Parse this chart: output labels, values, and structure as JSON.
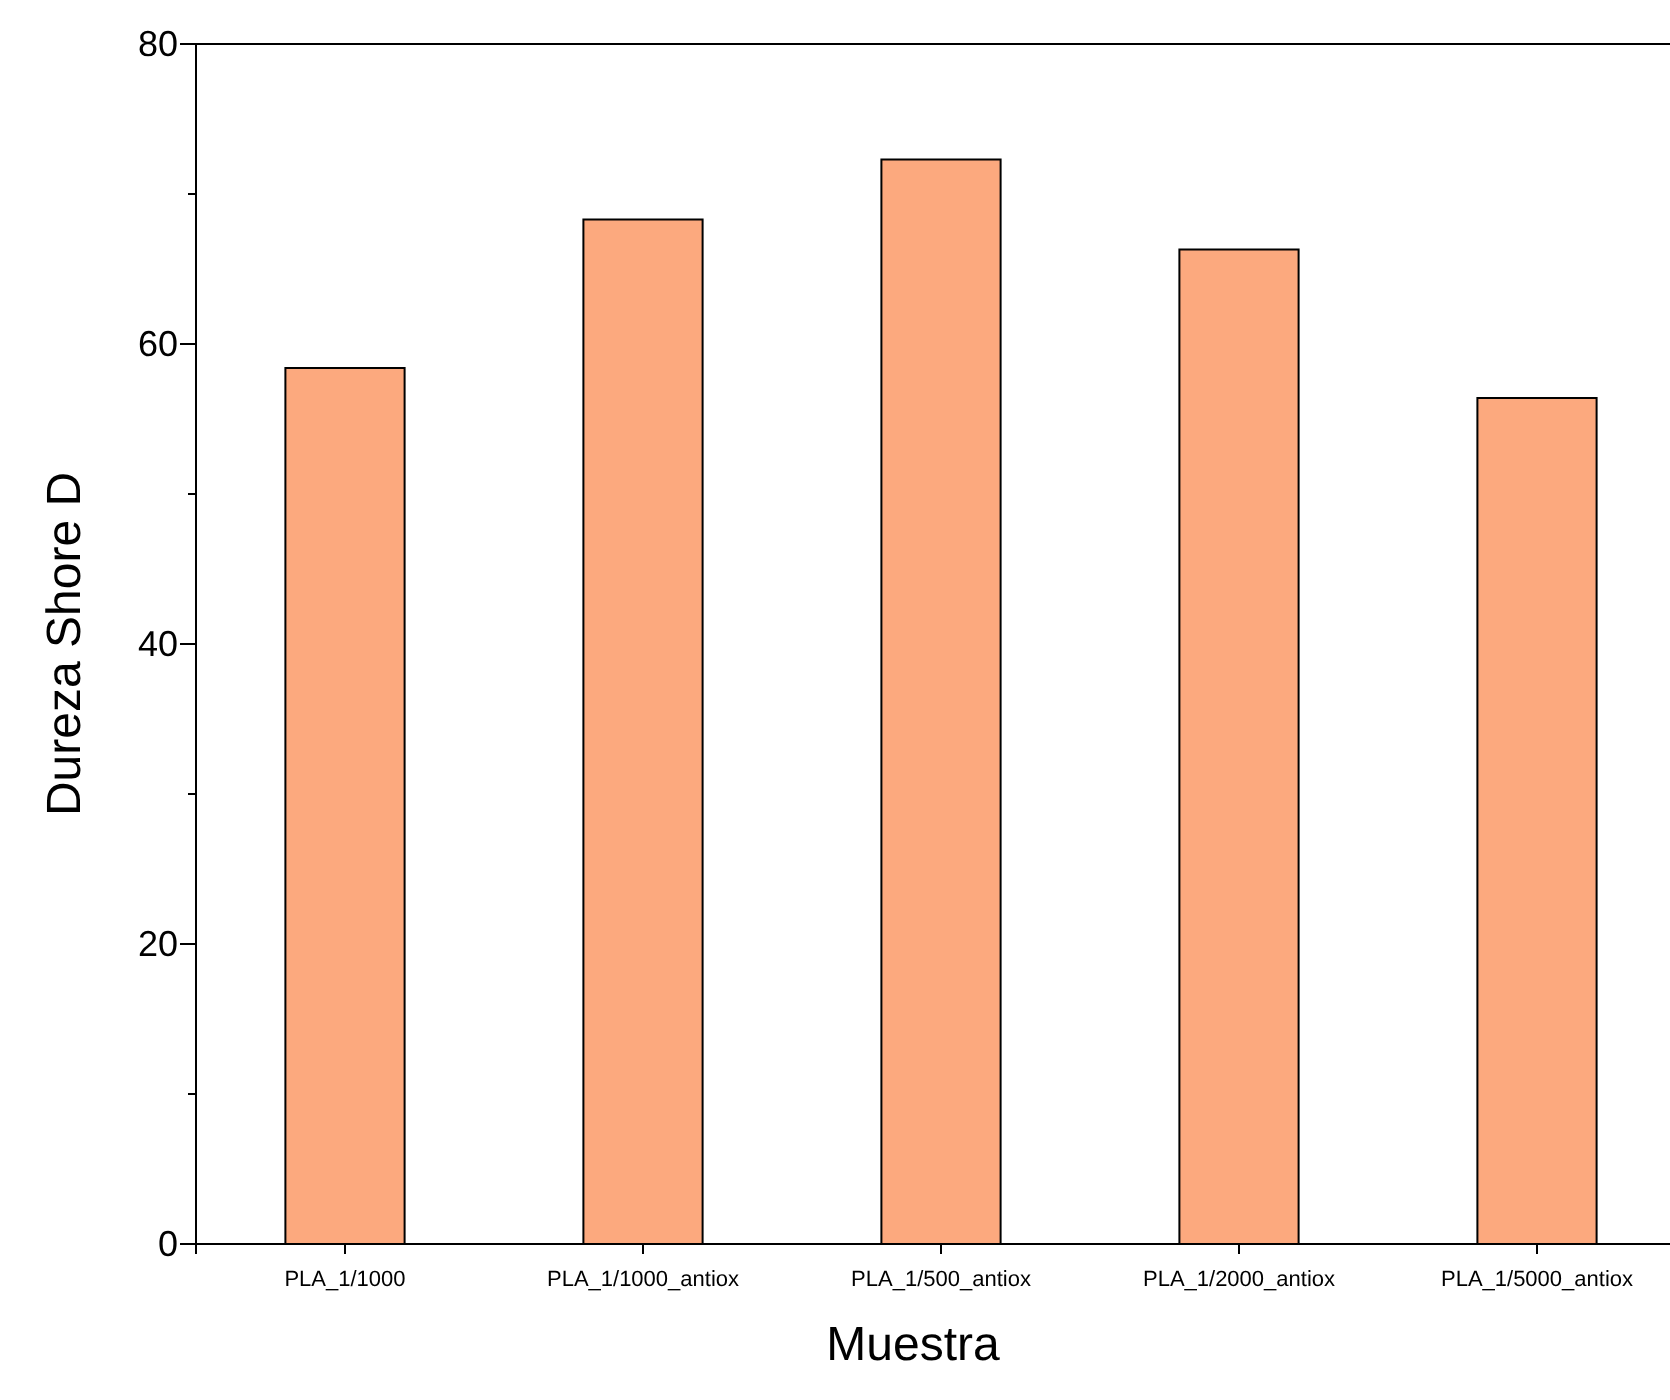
{
  "chart_data": {
    "type": "bar",
    "xlabel": "Muestra",
    "ylabel": "Dureza Shore D",
    "categories": [
      "PLA_1/1000",
      "PLA_1/1000_antiox",
      "PLA_1/500_antiox",
      "PLA_1/2000_antiox",
      "PLA_1/5000_antiox"
    ],
    "values": [
      58.4,
      68.3,
      72.3,
      66.3,
      56.4
    ],
    "color": "#fca97e",
    "ylim": [
      0,
      80
    ],
    "yticks": [
      0,
      {
        "value": 10,
        "label": null
      },
      20,
      {
        "value": 30,
        "label": null
      },
      40,
      {
        "value": 50,
        "label": null
      },
      60,
      {
        "value": 70,
        "label": null
      },
      80
    ],
    "grid": false
  }
}
